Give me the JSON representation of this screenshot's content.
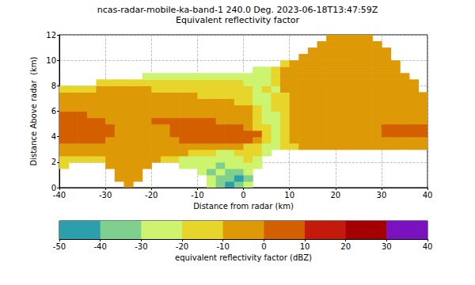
{
  "chart_data": {
    "type": "heatmap",
    "title": "ncas-radar-mobile-ka-band-1 240.0 Deg. 2023-06-18T13:47:59Z",
    "subtitle": "Equivalent reflectivity factor",
    "x_label": "Distance from radar (km)",
    "y_label": "Distance Above radar  (km)",
    "xlim": [
      -40,
      40
    ],
    "xticks": [
      -40,
      -30,
      -20,
      -10,
      0,
      10,
      20,
      30,
      40
    ],
    "ylim": [
      0,
      12
    ],
    "yticks": [
      0,
      2,
      4,
      6,
      8,
      10,
      12
    ],
    "grid": true,
    "cells": {
      "x_edges": [
        -40,
        -38,
        -36,
        -34,
        -32,
        -30,
        -28,
        -26,
        -24,
        -22,
        -20,
        -18,
        -16,
        -14,
        -12,
        -10,
        -8,
        -6,
        -4,
        -2,
        0,
        2,
        4,
        6,
        8,
        10,
        12,
        14,
        16,
        18,
        20,
        22,
        24,
        26,
        28,
        30,
        32,
        34,
        36,
        38,
        40
      ],
      "y_edges": [
        0,
        0.5,
        1,
        1.5,
        2,
        2.5,
        3,
        3.5,
        4,
        4.5,
        5,
        5.5,
        6,
        6.5,
        7,
        7.5,
        8,
        8.5,
        9,
        9.5,
        10,
        10.5,
        11,
        11.5,
        12
      ],
      "values": [
        [
          null,
          null,
          null,
          null,
          null,
          null,
          null,
          -5,
          null,
          null,
          null,
          null,
          null,
          null,
          null,
          null,
          -25,
          -35,
          -45,
          -35,
          -25,
          null,
          null,
          null,
          null,
          null,
          null,
          null,
          null,
          null,
          null,
          null,
          null,
          null,
          null,
          null,
          null,
          null,
          null,
          null
        ],
        [
          null,
          null,
          null,
          null,
          null,
          null,
          -5,
          -5,
          -5,
          null,
          null,
          null,
          null,
          null,
          null,
          null,
          -25,
          -35,
          -35,
          -45,
          -35,
          null,
          null,
          null,
          null,
          null,
          null,
          null,
          null,
          null,
          null,
          null,
          null,
          null,
          null,
          null,
          null,
          null,
          null,
          null
        ],
        [
          null,
          null,
          null,
          null,
          null,
          null,
          -5,
          -5,
          -5,
          null,
          null,
          null,
          null,
          null,
          null,
          -25,
          -35,
          -25,
          -35,
          -35,
          -25,
          null,
          null,
          null,
          null,
          null,
          null,
          null,
          null,
          null,
          null,
          null,
          null,
          null,
          null,
          null,
          null,
          null,
          null,
          null
        ],
        [
          -15,
          null,
          null,
          null,
          null,
          -5,
          -5,
          -5,
          -5,
          -5,
          null,
          null,
          null,
          -25,
          -25,
          -25,
          -25,
          -35,
          -25,
          -25,
          -25,
          -25,
          null,
          null,
          null,
          null,
          null,
          null,
          null,
          null,
          null,
          null,
          null,
          null,
          null,
          null,
          null,
          null,
          null,
          null
        ],
        [
          -15,
          -15,
          -15,
          -15,
          -15,
          -5,
          -5,
          -5,
          -5,
          -5,
          -5,
          -15,
          -15,
          -25,
          -25,
          -25,
          -25,
          -25,
          -25,
          -25,
          -15,
          -25,
          null,
          null,
          null,
          null,
          null,
          null,
          null,
          null,
          null,
          null,
          null,
          null,
          null,
          null,
          null,
          null,
          null,
          null
        ],
        [
          -5,
          -5,
          -5,
          -5,
          -5,
          -5,
          -5,
          -5,
          -5,
          -5,
          -5,
          -5,
          -5,
          -5,
          -15,
          -15,
          -15,
          -25,
          -25,
          -15,
          -15,
          -15,
          -25,
          null,
          null,
          null,
          null,
          null,
          null,
          null,
          null,
          null,
          null,
          null,
          null,
          null,
          null,
          null,
          null,
          null
        ],
        [
          -5,
          -5,
          -5,
          -5,
          -5,
          -5,
          -5,
          -5,
          -5,
          -5,
          -5,
          -5,
          -5,
          -5,
          -5,
          -5,
          -5,
          -5,
          -5,
          -5,
          -15,
          -15,
          -25,
          -25,
          -15,
          -15,
          -5,
          -5,
          -5,
          -5,
          -5,
          -5,
          -5,
          -5,
          -5,
          -5,
          -5,
          -5,
          -5,
          -5
        ],
        [
          5,
          5,
          5,
          5,
          5,
          -5,
          -5,
          -5,
          -5,
          -5,
          -5,
          -5,
          -5,
          5,
          5,
          5,
          5,
          5,
          5,
          5,
          5,
          -5,
          -15,
          -25,
          -15,
          -5,
          -5,
          -5,
          -5,
          -5,
          -5,
          -5,
          -5,
          -5,
          -5,
          -5,
          -5,
          -5,
          -5,
          -5
        ],
        [
          5,
          5,
          5,
          5,
          5,
          5,
          -5,
          -5,
          -5,
          -5,
          -5,
          -5,
          5,
          5,
          5,
          5,
          5,
          5,
          5,
          5,
          5,
          5,
          -15,
          -25,
          -15,
          -5,
          -5,
          -5,
          -5,
          -5,
          -5,
          -5,
          -5,
          -5,
          -5,
          5,
          5,
          5,
          5,
          5
        ],
        [
          5,
          5,
          5,
          5,
          5,
          5,
          -5,
          -5,
          -5,
          -5,
          -5,
          -5,
          5,
          5,
          5,
          5,
          5,
          5,
          5,
          5,
          -5,
          -15,
          -15,
          -25,
          -15,
          -5,
          -5,
          -5,
          -5,
          -5,
          -5,
          -5,
          -5,
          -5,
          -5,
          5,
          5,
          5,
          5,
          5
        ],
        [
          5,
          5,
          5,
          5,
          5,
          -5,
          -5,
          -5,
          -5,
          -5,
          5,
          5,
          5,
          5,
          5,
          5,
          5,
          -5,
          -5,
          -5,
          -5,
          -15,
          -25,
          -25,
          -15,
          -5,
          -5,
          -5,
          -5,
          -5,
          -5,
          -5,
          -5,
          -5,
          -5,
          -5,
          -5,
          -5,
          -5,
          -5
        ],
        [
          5,
          5,
          5,
          -5,
          -5,
          -5,
          -5,
          -5,
          -5,
          -5,
          -5,
          -5,
          -5,
          -5,
          -5,
          -5,
          -5,
          -5,
          -5,
          -5,
          -5,
          -15,
          -25,
          -25,
          -15,
          -5,
          -5,
          -5,
          -5,
          -5,
          -5,
          -5,
          -5,
          -5,
          -5,
          -5,
          -5,
          -5,
          -5,
          -5
        ],
        [
          -5,
          -5,
          -5,
          -5,
          -5,
          -5,
          -5,
          -5,
          -5,
          -5,
          -5,
          -5,
          -5,
          -5,
          -5,
          -5,
          -5,
          -5,
          -5,
          -5,
          -5,
          -15,
          -25,
          -15,
          -15,
          -5,
          -5,
          -5,
          -5,
          -5,
          -5,
          -5,
          -5,
          -5,
          -5,
          -5,
          -5,
          -5,
          -5,
          -5
        ],
        [
          -5,
          -5,
          -5,
          -5,
          -5,
          -5,
          -5,
          -5,
          -5,
          -5,
          -5,
          -5,
          -5,
          -5,
          -5,
          -5,
          -5,
          -5,
          -5,
          -15,
          -15,
          -25,
          -25,
          -15,
          -15,
          -5,
          -5,
          -5,
          -5,
          -5,
          -5,
          -5,
          -5,
          -5,
          -5,
          -5,
          -5,
          -5,
          -5,
          -5
        ],
        [
          -5,
          -5,
          -5,
          -5,
          -5,
          -5,
          -5,
          -5,
          -5,
          -5,
          -5,
          -5,
          -5,
          -5,
          -5,
          -15,
          -15,
          -15,
          -15,
          -15,
          -15,
          -25,
          -25,
          -15,
          -15,
          -5,
          -5,
          -5,
          -5,
          -5,
          -5,
          -5,
          -5,
          -5,
          -5,
          -5,
          -5,
          -5,
          -5,
          -5
        ],
        [
          -15,
          -15,
          -15,
          -15,
          -5,
          -5,
          -5,
          -5,
          -5,
          -5,
          -15,
          -15,
          -15,
          -15,
          -15,
          -15,
          -15,
          -15,
          -15,
          -15,
          -15,
          -25,
          -15,
          -25,
          -5,
          -5,
          -5,
          -5,
          -5,
          -5,
          -5,
          -5,
          -5,
          -5,
          -5,
          -5,
          -5,
          -5,
          -5,
          null
        ],
        [
          null,
          null,
          null,
          null,
          -15,
          -15,
          -15,
          -15,
          -15,
          -15,
          -15,
          -15,
          -15,
          -15,
          -15,
          -15,
          -15,
          -15,
          -15,
          -15,
          -25,
          -25,
          -25,
          -15,
          -5,
          -5,
          -5,
          -5,
          -5,
          -5,
          -5,
          -5,
          -5,
          -5,
          -5,
          -5,
          -5,
          -5,
          -5,
          null
        ],
        [
          null,
          null,
          null,
          null,
          null,
          null,
          null,
          null,
          null,
          -25,
          -25,
          -25,
          -25,
          -25,
          -25,
          -25,
          -25,
          -25,
          -25,
          -25,
          -25,
          -25,
          -25,
          -15,
          -5,
          -5,
          -5,
          -5,
          -5,
          -5,
          -5,
          -5,
          -5,
          -5,
          -5,
          -5,
          -5,
          -5,
          null,
          null
        ],
        [
          null,
          null,
          null,
          null,
          null,
          null,
          null,
          null,
          null,
          null,
          null,
          null,
          null,
          null,
          null,
          null,
          null,
          null,
          null,
          null,
          null,
          -25,
          -25,
          -15,
          -5,
          -5,
          -5,
          -5,
          -5,
          -5,
          -5,
          -5,
          -5,
          -5,
          -5,
          -5,
          -5,
          null,
          null,
          null
        ],
        [
          null,
          null,
          null,
          null,
          null,
          null,
          null,
          null,
          null,
          null,
          null,
          null,
          null,
          null,
          null,
          null,
          null,
          null,
          null,
          null,
          null,
          null,
          null,
          null,
          -15,
          -5,
          -5,
          -5,
          -5,
          -5,
          -5,
          -5,
          -5,
          -5,
          -5,
          -5,
          -5,
          null,
          null,
          null
        ],
        [
          null,
          null,
          null,
          null,
          null,
          null,
          null,
          null,
          null,
          null,
          null,
          null,
          null,
          null,
          null,
          null,
          null,
          null,
          null,
          null,
          null,
          null,
          null,
          null,
          null,
          null,
          -5,
          -5,
          -5,
          -5,
          -5,
          -5,
          -5,
          -5,
          -5,
          -5,
          null,
          null,
          null,
          null
        ],
        [
          null,
          null,
          null,
          null,
          null,
          null,
          null,
          null,
          null,
          null,
          null,
          null,
          null,
          null,
          null,
          null,
          null,
          null,
          null,
          null,
          null,
          null,
          null,
          null,
          null,
          null,
          null,
          -5,
          -5,
          -5,
          -5,
          -5,
          -5,
          -5,
          -5,
          -5,
          null,
          null,
          null,
          null
        ],
        [
          null,
          null,
          null,
          null,
          null,
          null,
          null,
          null,
          null,
          null,
          null,
          null,
          null,
          null,
          null,
          null,
          null,
          null,
          null,
          null,
          null,
          null,
          null,
          null,
          null,
          null,
          null,
          null,
          -5,
          -5,
          -5,
          -5,
          -5,
          -5,
          -5,
          null,
          null,
          null,
          null,
          null
        ],
        [
          null,
          null,
          null,
          null,
          null,
          null,
          null,
          null,
          null,
          null,
          null,
          null,
          null,
          null,
          null,
          null,
          null,
          null,
          null,
          null,
          null,
          null,
          null,
          null,
          null,
          null,
          null,
          null,
          null,
          -5,
          -5,
          -5,
          -5,
          -5,
          null,
          null,
          null,
          null,
          null,
          null
        ]
      ]
    },
    "colorbar": {
      "label": "equivalent reflectivity factor (dBZ)",
      "range": [
        -50,
        40
      ],
      "ticks": [
        -50,
        -40,
        -30,
        -20,
        -10,
        0,
        10,
        20,
        30,
        40
      ],
      "bounds": [
        -50,
        -40,
        -30,
        -20,
        -10,
        0,
        10,
        20,
        30,
        40
      ],
      "colors": [
        "#2b9fab",
        "#7fcf8e",
        "#cdf46e",
        "#e8d52c",
        "#de9a06",
        "#d35f01",
        "#c31a0c",
        "#a50000",
        "#7b12bf"
      ]
    }
  }
}
